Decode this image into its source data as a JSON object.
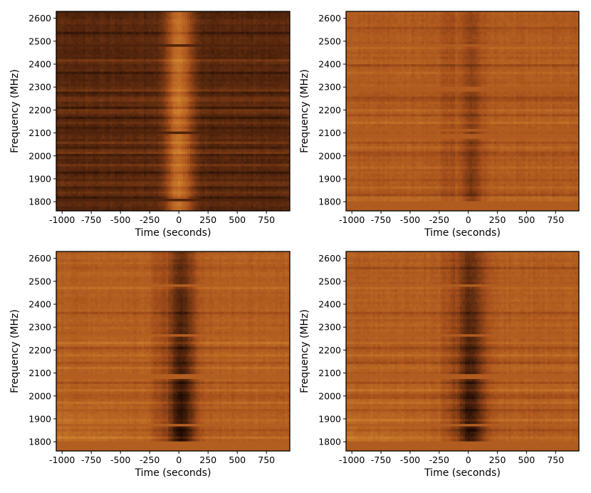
{
  "colors": {
    "low": "#1a0802",
    "mid": "#a7501c",
    "high": "#f0a93a",
    "frame": "#000000"
  },
  "chart_data": [
    {
      "type": "heatmap",
      "panel": "top-left",
      "title": "",
      "xlabel": "Time (seconds)",
      "ylabel": "Frequency (MHz)",
      "xlim": [
        -1050,
        950
      ],
      "ylim": [
        1760,
        2630
      ],
      "xticks": [
        -1000,
        -750,
        -500,
        -250,
        0,
        250,
        500,
        750
      ],
      "xtick_labels": [
        "-1000",
        "-750",
        "-500",
        "-250",
        "0",
        "250",
        "500",
        "750"
      ],
      "yticks": [
        1800,
        1900,
        2000,
        2100,
        2200,
        2300,
        2400,
        2500,
        2600
      ],
      "ytick_labels": [
        "1800",
        "1900",
        "2000",
        "2100",
        "2200",
        "2300",
        "2400",
        "2500",
        "2600"
      ],
      "colormap": "copper",
      "background_level": 0.22,
      "burst": {
        "center_time": 0,
        "half_width": 110,
        "peak_level": 0.68,
        "sign": 1
      },
      "flagged_bands_mhz": [
        [
          1802,
          1812
        ],
        [
          2476,
          2492
        ],
        [
          2092,
          2112
        ]
      ],
      "band_features_mhz": [
        2540,
        2420,
        2360,
        2290,
        2275,
        2250,
        2215,
        2195,
        2170,
        2150,
        2125,
        2060,
        2040,
        2020,
        2005,
        1960,
        1930,
        1880,
        1860,
        1840,
        1820
      ]
    },
    {
      "type": "heatmap",
      "panel": "top-right",
      "title": "",
      "xlabel": "Time (seconds)",
      "ylabel": "Frequency (MHz)",
      "xlim": [
        -1050,
        950
      ],
      "ylim": [
        1760,
        2630
      ],
      "xticks": [
        -1000,
        -750,
        -500,
        -250,
        0,
        250,
        500,
        750
      ],
      "xtick_labels": [
        "-1000",
        "-750",
        "-500",
        "-250",
        "0",
        "250",
        "500",
        "750"
      ],
      "yticks": [
        1800,
        1900,
        2000,
        2100,
        2200,
        2300,
        2400,
        2500,
        2600
      ],
      "ytick_labels": [
        "1800",
        "1900",
        "2000",
        "2100",
        "2200",
        "2300",
        "2400",
        "2500",
        "2600"
      ],
      "colormap": "copper",
      "background_level": 0.56,
      "burst": {
        "center_time": 30,
        "half_width": 90,
        "peak_level": 0.32,
        "sign": -1
      },
      "flagged_bands_mhz": [
        [
          1762,
          1802
        ],
        [
          2476,
          2492
        ],
        [
          2285,
          2300
        ],
        [
          2080,
          2100
        ],
        [
          2112,
          2122
        ]
      ],
      "band_features_mhz": [
        2560,
        2470,
        2400,
        2365,
        2250,
        2200,
        2175,
        2150,
        2060,
        2040,
        2010,
        1950,
        1900,
        1860,
        1830,
        1815
      ]
    },
    {
      "type": "heatmap",
      "panel": "bottom-left",
      "title": "",
      "xlabel": "Time (seconds)",
      "ylabel": "Frequency (MHz)",
      "xlim": [
        -1050,
        950
      ],
      "ylim": [
        1760,
        2630
      ],
      "xticks": [
        -1000,
        -750,
        -500,
        -250,
        0,
        250,
        500,
        750
      ],
      "xtick_labels": [
        "-1000",
        "-750",
        "-500",
        "-250",
        "0",
        "250",
        "500",
        "750"
      ],
      "yticks": [
        1800,
        1900,
        2000,
        2100,
        2200,
        2300,
        2400,
        2500,
        2600
      ],
      "ytick_labels": [
        "1800",
        "1900",
        "2000",
        "2100",
        "2200",
        "2300",
        "2400",
        "2500",
        "2600"
      ],
      "colormap": "copper",
      "background_level": 0.58,
      "burst": {
        "center_time": 20,
        "half_width": 120,
        "peak_level": 0.05,
        "sign": -1
      },
      "flagged_bands_mhz": [
        [
          1762,
          1802
        ],
        [
          2476,
          2492
        ],
        [
          2258,
          2268
        ],
        [
          2080,
          2100
        ],
        [
          1872,
          1882
        ]
      ],
      "band_features_mhz": [
        2560,
        2470,
        2365,
        2230,
        2210,
        2180,
        2150,
        2125,
        2060,
        2030,
        2000,
        1970,
        1940,
        1900,
        1850,
        1820
      ]
    },
    {
      "type": "heatmap",
      "panel": "bottom-right",
      "title": "",
      "xlabel": "Time (seconds)",
      "ylabel": "Frequency (MHz)",
      "xlim": [
        -1050,
        950
      ],
      "ylim": [
        1760,
        2630
      ],
      "xticks": [
        -1000,
        -750,
        -500,
        -250,
        0,
        250,
        500,
        750
      ],
      "xtick_labels": [
        "-1000",
        "-750",
        "-500",
        "-250",
        "0",
        "250",
        "500",
        "750"
      ],
      "yticks": [
        1800,
        1900,
        2000,
        2100,
        2200,
        2300,
        2400,
        2500,
        2600
      ],
      "ytick_labels": [
        "1800",
        "1900",
        "2000",
        "2100",
        "2200",
        "2300",
        "2400",
        "2500",
        "2600"
      ],
      "colormap": "copper",
      "background_level": 0.57,
      "burst": {
        "center_time": 20,
        "half_width": 120,
        "peak_level": 0.06,
        "sign": -1
      },
      "flagged_bands_mhz": [
        [
          1762,
          1802
        ],
        [
          2476,
          2492
        ],
        [
          2262,
          2272
        ],
        [
          2080,
          2100
        ],
        [
          1872,
          1882
        ]
      ],
      "band_features_mhz": [
        2560,
        2470,
        2365,
        2230,
        2210,
        2180,
        2150,
        2125,
        2060,
        2030,
        2000,
        1970,
        1940,
        1900,
        1850,
        1820
      ]
    }
  ]
}
